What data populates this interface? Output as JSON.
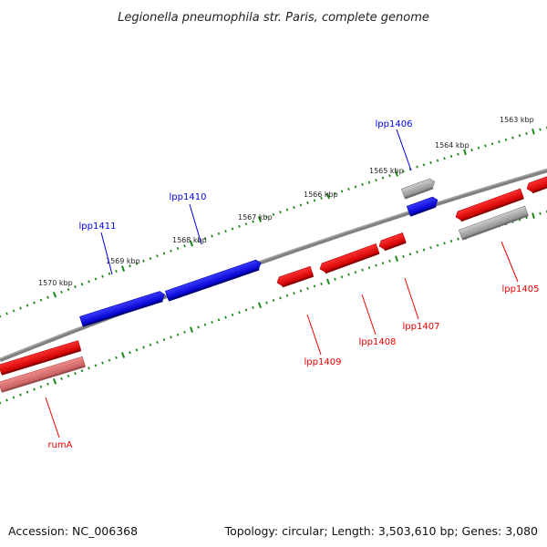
{
  "title": "Legionella pneumophila str. Paris, complete genome",
  "footer": {
    "accession": "Accession: NC_006368",
    "summary": "Topology: circular; Length: 3,503,610 bp; Genes: 3,080"
  },
  "colors": {
    "forward": "#0000ee",
    "reverse": "#ee0000",
    "pseudo": "#a0a0a0",
    "tick": "#1a8a1a",
    "backbone": "#808080"
  },
  "scale_labels": [
    "1570 kbp",
    "1569 kbp",
    "1568 kbp",
    "1567 kbp",
    "1566 kbp",
    "1565 kbp",
    "1564 kbp",
    "1563 kbp"
  ],
  "gene_labels": {
    "lpp1411": "lpp1411",
    "lpp1410": "lpp1410",
    "lpp1406": "lpp1406",
    "lpp1409": "lpp1409",
    "lpp1408": "lpp1408",
    "lpp1407": "lpp1407",
    "lpp1405": "lpp1405",
    "rumA": "rumA"
  }
}
